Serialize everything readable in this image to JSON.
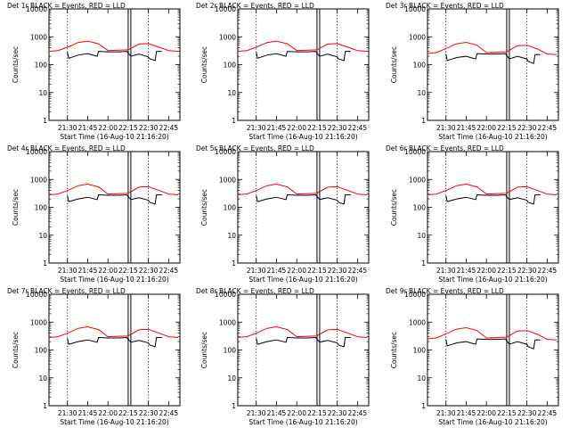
{
  "colors": {
    "background": "#ffffff",
    "axes": "#000000",
    "events": "#000000",
    "lld": "#ff0000"
  },
  "chart_data": {
    "type": "line",
    "layout_grid": "3x3",
    "y_scale": "log",
    "ylim": [
      1,
      10000
    ],
    "y_ticks": [
      "1",
      "10",
      "100",
      "1000",
      "10000"
    ],
    "x_ticks": [
      "21:30",
      "21:45",
      "22:00",
      "22:15",
      "22:30",
      "22:45"
    ],
    "xlabel": "Start Time (16-Aug-10 21:16:20)",
    "ylabel": "Counts/sec",
    "grid": false,
    "vertical_dotted_markers": [
      "21:30",
      "22:30"
    ],
    "vertical_solid_markers": [
      "22:16"
    ],
    "panels": [
      {
        "title": "Det 1r BLACK = Events, RED = LLD",
        "series": [
          {
            "color": "red",
            "x": [
              "21:16",
              "21:23",
              "21:30",
              "21:38",
              "21:45",
              "21:53",
              "22:00",
              "22:08",
              "22:15",
              "22:23",
              "22:30",
              "22:38",
              "22:45",
              "22:52"
            ],
            "values": [
              300,
              320,
              420,
              620,
              700,
              560,
              320,
              330,
              340,
              550,
              570,
              420,
              320,
              300
            ]
          },
          {
            "color": "black",
            "x": [
              "21:30",
              "21:31",
              "21:38",
              "21:45",
              "21:52",
              "21:53",
              "22:00",
              "22:08",
              "22:14",
              "22:17",
              "22:23",
              "22:30",
              "22:31",
              "22:35",
              "22:36",
              "22:40"
            ],
            "values": [
              280,
              170,
              220,
              250,
              200,
              300,
              290,
              290,
              300,
              200,
              240,
              190,
              160,
              140,
              300,
              300
            ]
          }
        ]
      },
      {
        "title": "Det 2r BLACK = Events, RED = LLD",
        "series": [
          {
            "color": "red",
            "x": [
              "21:16",
              "21:23",
              "21:30",
              "21:38",
              "21:45",
              "21:53",
              "22:00",
              "22:08",
              "22:15",
              "22:23",
              "22:30",
              "22:38",
              "22:45",
              "22:52"
            ],
            "values": [
              300,
              320,
              420,
              620,
              700,
              560,
              320,
              330,
              340,
              550,
              570,
              420,
              320,
              300
            ]
          },
          {
            "color": "black",
            "x": [
              "21:30",
              "21:31",
              "21:38",
              "21:45",
              "21:52",
              "21:53",
              "22:00",
              "22:08",
              "22:14",
              "22:17",
              "22:23",
              "22:30",
              "22:31",
              "22:35",
              "22:36",
              "22:40"
            ],
            "values": [
              280,
              170,
              220,
              250,
              200,
              300,
              290,
              290,
              300,
              200,
              240,
              190,
              160,
              140,
              300,
              300
            ]
          }
        ]
      },
      {
        "title": "Det 3r BLACK = Events, RED = LLD",
        "series": [
          {
            "color": "red",
            "x": [
              "21:16",
              "21:23",
              "21:30",
              "21:38",
              "21:45",
              "21:53",
              "22:00",
              "22:08",
              "22:15",
              "22:23",
              "22:30",
              "22:38",
              "22:45",
              "22:52"
            ],
            "values": [
              250,
              270,
              380,
              560,
              630,
              500,
              270,
              280,
              290,
              480,
              500,
              360,
              240,
              230
            ]
          },
          {
            "color": "black",
            "x": [
              "21:30",
              "21:31",
              "21:38",
              "21:45",
              "21:52",
              "21:53",
              "22:00",
              "22:08",
              "22:14",
              "22:17",
              "22:23",
              "22:30",
              "22:31",
              "22:35",
              "22:36",
              "22:40"
            ],
            "values": [
              240,
              140,
              180,
              200,
              160,
              250,
              240,
              240,
              250,
              160,
              200,
              160,
              130,
              110,
              230,
              230
            ]
          }
        ]
      },
      {
        "title": "Det 4r BLACK = Events, RED = LLD",
        "series": [
          {
            "color": "red",
            "x": [
              "21:16",
              "21:23",
              "21:30",
              "21:38",
              "21:45",
              "21:53",
              "22:00",
              "22:08",
              "22:15",
              "22:23",
              "22:30",
              "22:38",
              "22:45",
              "22:52"
            ],
            "values": [
              280,
              300,
              400,
              600,
              680,
              540,
              300,
              310,
              320,
              530,
              550,
              400,
              300,
              280
            ]
          },
          {
            "color": "black",
            "x": [
              "21:30",
              "21:31",
              "21:38",
              "21:45",
              "21:52",
              "21:53",
              "22:00",
              "22:08",
              "22:14",
              "22:17",
              "22:23",
              "22:30",
              "22:31",
              "22:35",
              "22:36",
              "22:40"
            ],
            "values": [
              260,
              160,
              200,
              230,
              190,
              280,
              270,
              270,
              280,
              190,
              220,
              180,
              150,
              130,
              280,
              280
            ]
          }
        ]
      },
      {
        "title": "Det 5r BLACK = Events, RED = LLD",
        "series": [
          {
            "color": "red",
            "x": [
              "21:16",
              "21:23",
              "21:30",
              "21:38",
              "21:45",
              "21:53",
              "22:00",
              "22:08",
              "22:15",
              "22:23",
              "22:30",
              "22:38",
              "22:45",
              "22:52"
            ],
            "values": [
              280,
              300,
              400,
              600,
              680,
              540,
              300,
              310,
              320,
              530,
              550,
              400,
              300,
              280
            ]
          },
          {
            "color": "black",
            "x": [
              "21:30",
              "21:31",
              "21:38",
              "21:45",
              "21:52",
              "21:53",
              "22:00",
              "22:08",
              "22:14",
              "22:17",
              "22:23",
              "22:30",
              "22:31",
              "22:35",
              "22:36",
              "22:40"
            ],
            "values": [
              260,
              160,
              200,
              230,
              190,
              280,
              270,
              270,
              280,
              190,
              220,
              180,
              150,
              130,
              280,
              280
            ]
          }
        ]
      },
      {
        "title": "Det 6r BLACK = Events, RED = LLD",
        "series": [
          {
            "color": "red",
            "x": [
              "21:16",
              "21:23",
              "21:30",
              "21:38",
              "21:45",
              "21:53",
              "22:00",
              "22:08",
              "22:15",
              "22:23",
              "22:30",
              "22:38",
              "22:45",
              "22:52"
            ],
            "values": [
              280,
              300,
              400,
              600,
              680,
              540,
              300,
              310,
              320,
              530,
              550,
              400,
              300,
              280
            ]
          },
          {
            "color": "black",
            "x": [
              "21:30",
              "21:31",
              "21:38",
              "21:45",
              "21:52",
              "21:53",
              "22:00",
              "22:08",
              "22:14",
              "22:17",
              "22:23",
              "22:30",
              "22:31",
              "22:35",
              "22:36",
              "22:40"
            ],
            "values": [
              260,
              160,
              200,
              230,
              190,
              280,
              270,
              270,
              280,
              190,
              220,
              180,
              150,
              130,
              280,
              280
            ]
          }
        ]
      },
      {
        "title": "Det 7r BLACK = Events, RED = LLD",
        "series": [
          {
            "color": "red",
            "x": [
              "21:16",
              "21:23",
              "21:30",
              "21:38",
              "21:45",
              "21:53",
              "22:00",
              "22:08",
              "22:15",
              "22:23",
              "22:30",
              "22:38",
              "22:45",
              "22:52"
            ],
            "values": [
              280,
              300,
              400,
              600,
              680,
              540,
              300,
              310,
              320,
              530,
              550,
              400,
              300,
              280
            ]
          },
          {
            "color": "black",
            "x": [
              "21:30",
              "21:31",
              "21:38",
              "21:45",
              "21:52",
              "21:53",
              "22:00",
              "22:08",
              "22:14",
              "22:17",
              "22:23",
              "22:30",
              "22:31",
              "22:35",
              "22:36",
              "22:40"
            ],
            "values": [
              260,
              160,
              200,
              230,
              190,
              280,
              270,
              270,
              280,
              190,
              220,
              180,
              150,
              130,
              280,
              280
            ]
          }
        ]
      },
      {
        "title": "Det 8r BLACK = Events, RED = LLD",
        "series": [
          {
            "color": "red",
            "x": [
              "21:16",
              "21:23",
              "21:30",
              "21:38",
              "21:45",
              "21:53",
              "22:00",
              "22:08",
              "22:15",
              "22:23",
              "22:30",
              "22:38",
              "22:45",
              "22:52"
            ],
            "values": [
              280,
              300,
              400,
              600,
              680,
              540,
              300,
              310,
              320,
              530,
              550,
              400,
              300,
              280
            ]
          },
          {
            "color": "black",
            "x": [
              "21:30",
              "21:31",
              "21:38",
              "21:45",
              "21:52",
              "21:53",
              "22:00",
              "22:08",
              "22:14",
              "22:17",
              "22:23",
              "22:30",
              "22:31",
              "22:35",
              "22:36",
              "22:40"
            ],
            "values": [
              260,
              160,
              200,
              230,
              190,
              280,
              270,
              270,
              280,
              190,
              220,
              180,
              150,
              130,
              280,
              280
            ]
          }
        ]
      },
      {
        "title": "Det 9r BLACK = Events, RED = LLD",
        "series": [
          {
            "color": "red",
            "x": [
              "21:16",
              "21:23",
              "21:30",
              "21:38",
              "21:45",
              "21:53",
              "22:00",
              "22:08",
              "22:15",
              "22:23",
              "22:30",
              "22:38",
              "22:45",
              "22:52"
            ],
            "values": [
              250,
              270,
              380,
              560,
              630,
              500,
              270,
              280,
              290,
              480,
              500,
              360,
              240,
              230
            ]
          },
          {
            "color": "black",
            "x": [
              "21:30",
              "21:31",
              "21:38",
              "21:45",
              "21:52",
              "21:53",
              "22:00",
              "22:08",
              "22:14",
              "22:17",
              "22:23",
              "22:30",
              "22:31",
              "22:35",
              "22:36",
              "22:40"
            ],
            "values": [
              240,
              140,
              180,
              200,
              160,
              250,
              240,
              240,
              250,
              160,
              200,
              160,
              130,
              110,
              230,
              230
            ]
          }
        ]
      }
    ]
  }
}
